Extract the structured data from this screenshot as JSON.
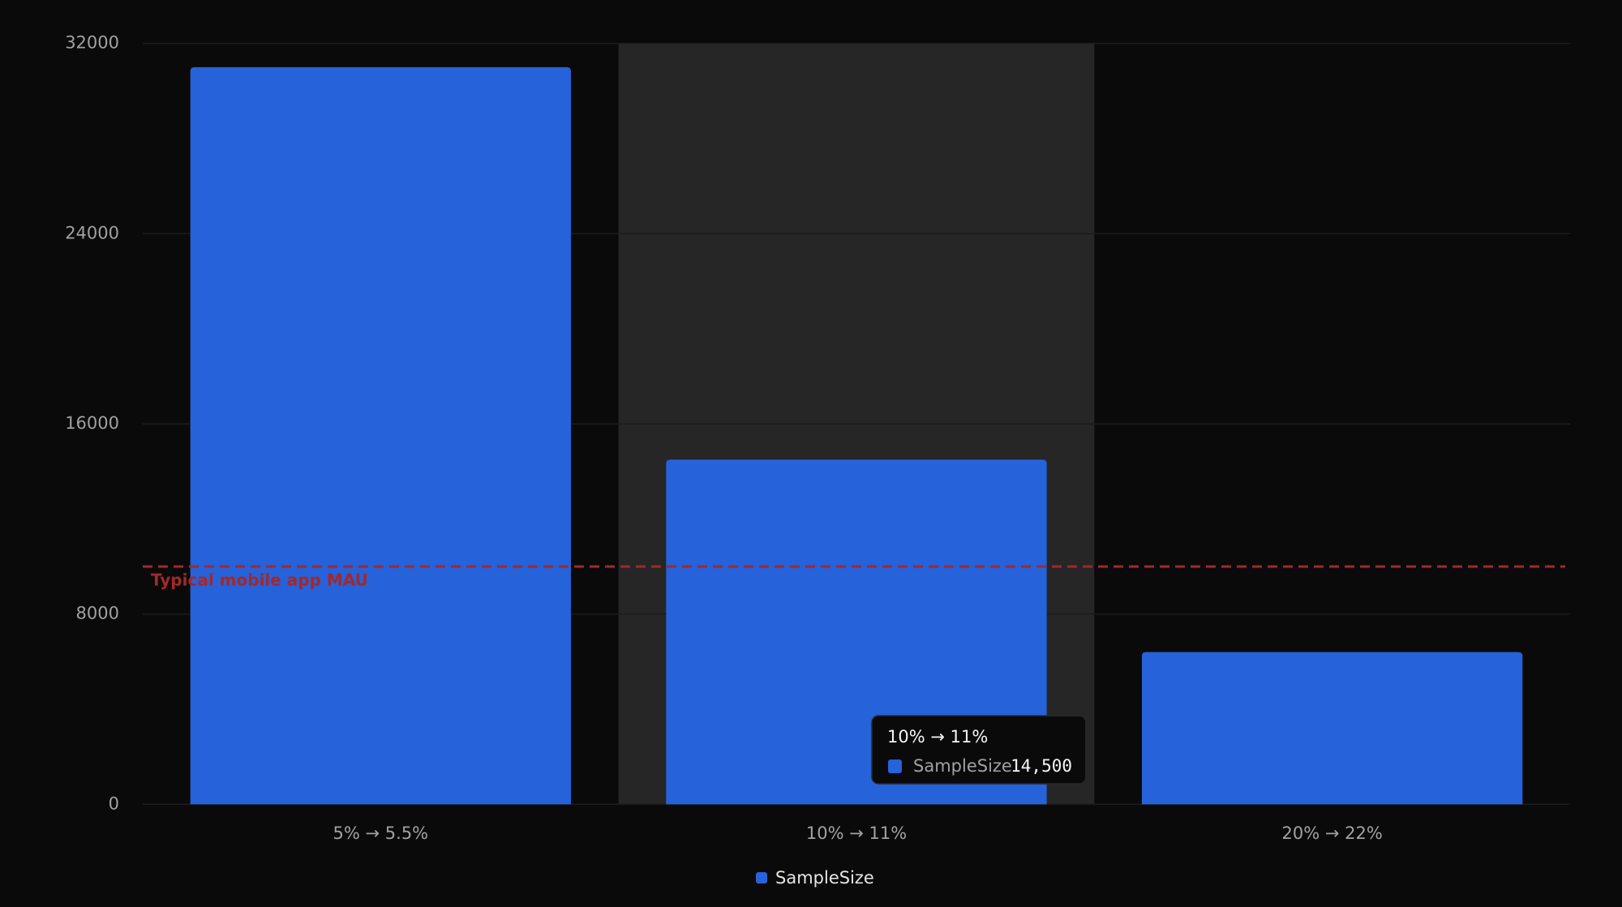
{
  "chart_data": {
    "type": "bar",
    "categories": [
      "5% → 5.5%",
      "10% → 11%",
      "20% → 22%"
    ],
    "series": [
      {
        "name": "SampleSize",
        "color": "#2662d9",
        "values": [
          31000,
          14500,
          6400
        ]
      }
    ],
    "ylim": [
      0,
      32000
    ],
    "yticks": [
      0,
      8000,
      16000,
      24000,
      32000
    ],
    "grid": true,
    "legend": "bottom",
    "reference_lines": [
      {
        "value": 10000,
        "label": "Typical mobile app MAU",
        "color": "#a3282a"
      }
    ],
    "tooltip": {
      "category": "10% → 11%",
      "series": "SampleSize",
      "value_label": "14,500"
    }
  }
}
